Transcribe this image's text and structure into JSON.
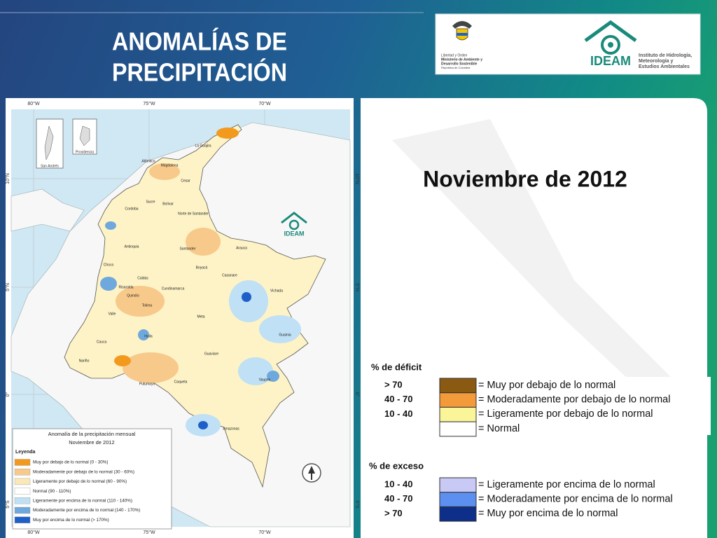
{
  "header": {
    "title_lines": [
      "ANOMALÍAS DE",
      "PRECIPITACIÓN"
    ]
  },
  "logos": {
    "government": [
      "Libertad y Orden",
      "Ministerio de Ambiente y",
      "Desarrollo Sostenible",
      "República de Colombia"
    ],
    "ideam": {
      "acronym": "IDEAM",
      "name_lines": [
        "Instituto de Hidrología,",
        "Meteorología y",
        "Estudios Ambientales"
      ]
    }
  },
  "subtitle": "Noviembre de 2012",
  "map": {
    "longitudes": [
      "80°W",
      "75°W",
      "70°W"
    ],
    "latitudes": [
      "10°N",
      "5°N",
      "0°",
      "5°S"
    ],
    "insets": [
      "San Andrés",
      "Providencia"
    ],
    "logo": "IDEAM",
    "regions": [
      "La Guajira",
      "Atlántico",
      "Magdalena",
      "Cesar",
      "Sucre",
      "Bolívar",
      "Cordoba",
      "Norte de Santander",
      "Antioquia",
      "Santander",
      "Arauca",
      "Choco",
      "Boyacá",
      "Casanare",
      "Caldas",
      "Risaralda",
      "Cundinamarca",
      "Quindío",
      "Tolima",
      "Vichada",
      "Meta",
      "Valle",
      "Huila",
      "Guainia",
      "Cauca",
      "Nariño",
      "Guaviare",
      "Caqueta",
      "Putumayo",
      "Vaupes",
      "Amazonas"
    ],
    "legend": {
      "title_lines": [
        "Anomalía de la precipitación mensual",
        "Noviembre de 2012"
      ],
      "heading": "Leyenda",
      "items": [
        {
          "label": "Muy por debajo de lo normal (0 - 30%)",
          "color": "#f39a1e"
        },
        {
          "label": "Moderadamente por debajo de lo normal (30 - 60%)",
          "color": "#f7c98a"
        },
        {
          "label": "Ligeramente por debajo de lo normal (60 - 90%)",
          "color": "#fbe8b8"
        },
        {
          "label": "Normal (90 - 110%)",
          "color": "#ffffff"
        },
        {
          "label": "Ligeramente por encima de lo normal (110 - 140%)",
          "color": "#bfe0f5"
        },
        {
          "label": "Moderadamente por encima de lo normal (140 - 170%)",
          "color": "#6fa8dc"
        },
        {
          "label": "Muy por encima de lo normal (> 170%)",
          "color": "#1f5fc8"
        }
      ]
    }
  },
  "legend": {
    "deficit": {
      "heading": "% de déficit",
      "rows": [
        {
          "range": "> 70",
          "label": "= Muy por debajo de lo normal",
          "color": "#8a5a12"
        },
        {
          "range": "40 -  70",
          "label": "= Moderadamente por debajo de lo normal",
          "color": "#f39a3a"
        },
        {
          "range": "10 -  40",
          "label": "= Ligeramente por debajo de lo normal",
          "color": "#fbf59a"
        },
        {
          "label": "= Normal",
          "color": "#ffffff"
        }
      ]
    },
    "excess": {
      "heading": "% de exceso",
      "rows": [
        {
          "range": "10 -  40",
          "label": "= Ligeramente por encima de lo normal",
          "color": "#c9c9f5"
        },
        {
          "range": "40 -  70",
          "label": "= Moderadamente por encima de lo normal",
          "color": "#5c8ff0"
        },
        {
          "range": "> 70",
          "label": "= Muy por encima de lo normal",
          "color": "#0d2f8a"
        }
      ]
    }
  }
}
